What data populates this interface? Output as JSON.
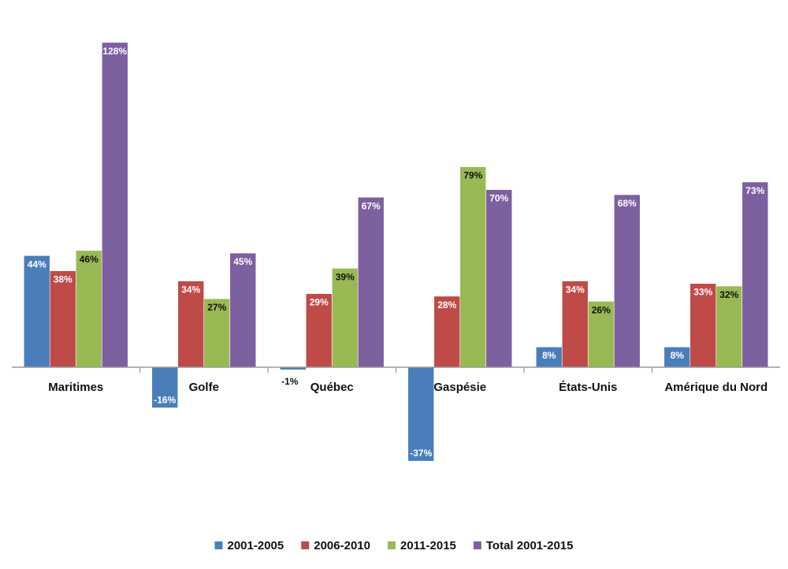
{
  "chart_data": {
    "type": "bar",
    "title": "",
    "xlabel": "",
    "ylabel": "",
    "categories": [
      "Maritimes",
      "Golfe",
      "Québec",
      "Gaspésie",
      "États-Unis",
      "Amérique du Nord"
    ],
    "series": [
      {
        "name": "2001-2005",
        "color": "#4a7ebb",
        "values": [
          44,
          -16,
          -1,
          -37,
          8,
          8
        ],
        "labels": [
          "44%",
          "-16%",
          "-1%",
          "-37%",
          "8%",
          "8%"
        ]
      },
      {
        "name": "2006-2010",
        "color": "#be4b48",
        "values": [
          38,
          34,
          29,
          28,
          34,
          33
        ],
        "labels": [
          "38%",
          "34%",
          "29%",
          "28%",
          "34%",
          "33%"
        ]
      },
      {
        "name": "2011-2015",
        "color": "#98b954",
        "values": [
          46,
          27,
          39,
          79,
          26,
          32
        ],
        "labels": [
          "46%",
          "27%",
          "39%",
          "79%",
          "26%",
          "32%"
        ]
      },
      {
        "name": "Total 2001-2015",
        "color": "#7d60a0",
        "values": [
          128,
          45,
          67,
          70,
          68,
          73
        ],
        "labels": [
          "128%",
          "45%",
          "67%",
          "70%",
          "68%",
          "73%"
        ]
      }
    ],
    "ylim": [
      -37,
      128
    ],
    "grid": false,
    "legend_position": "bottom"
  }
}
